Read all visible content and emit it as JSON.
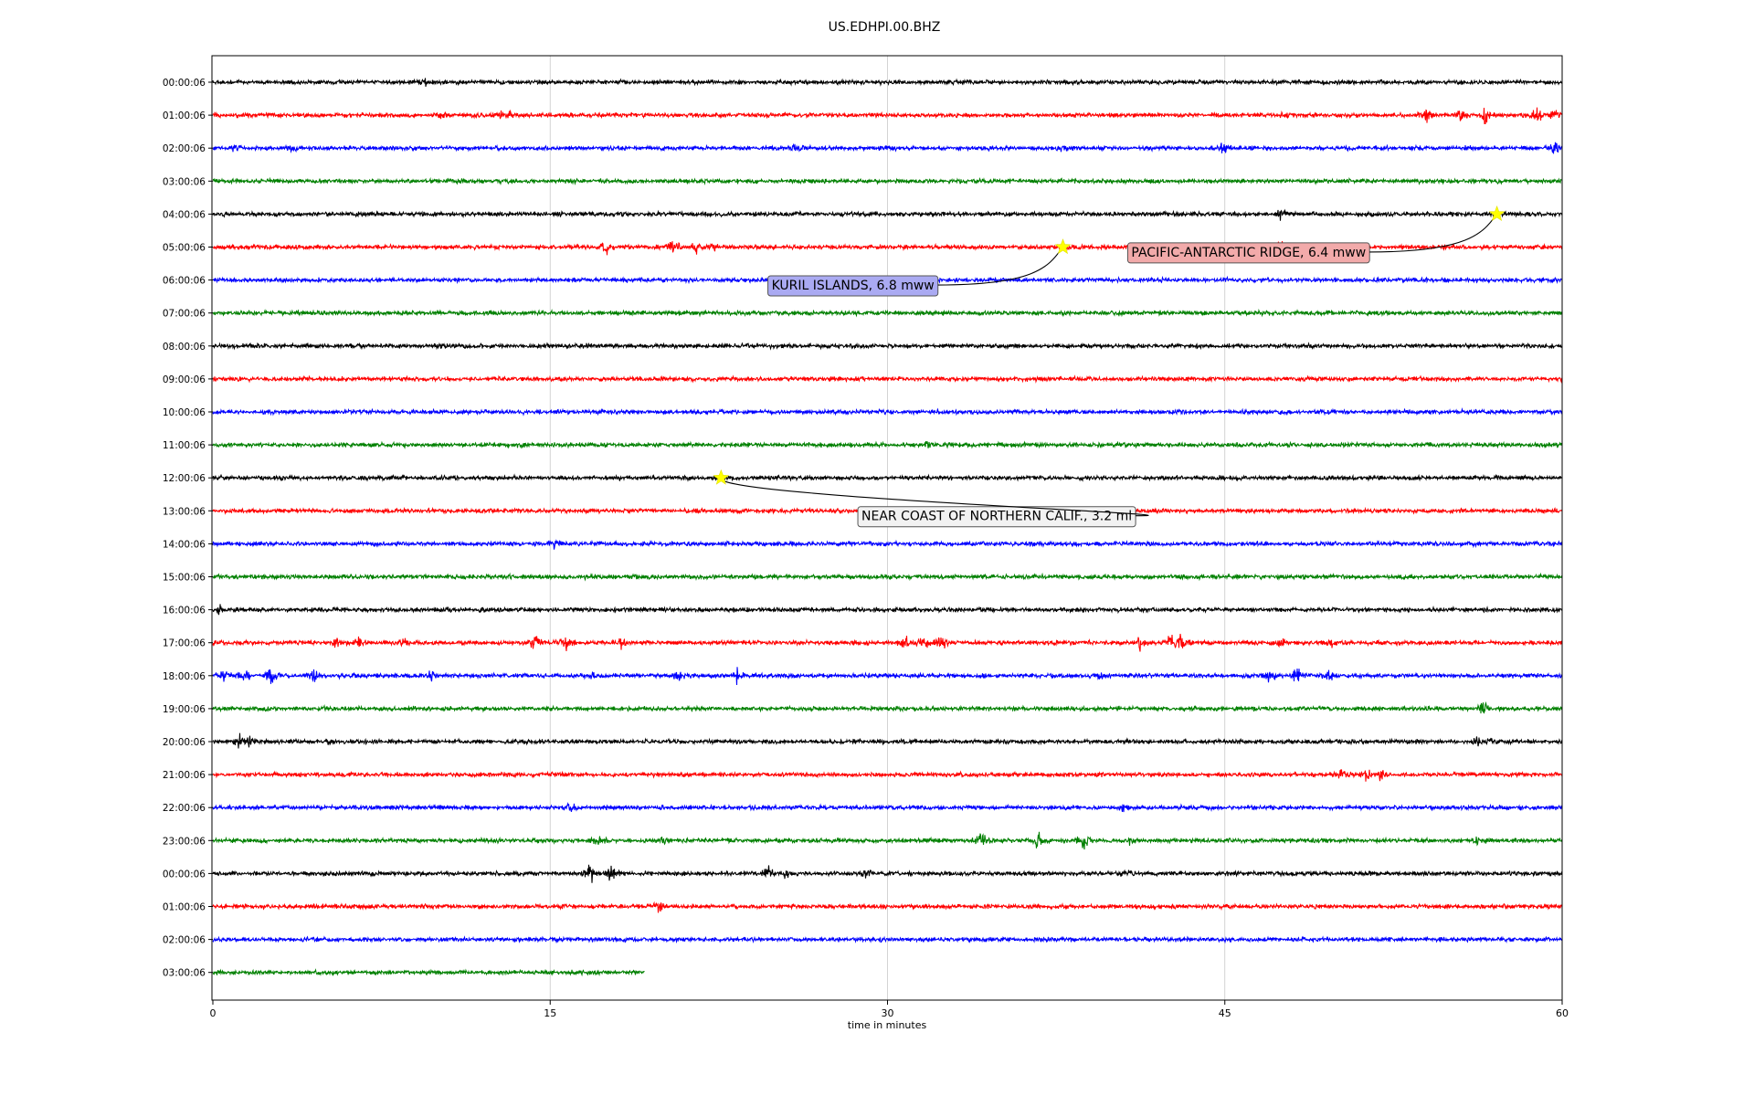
{
  "chart_data": {
    "type": "line",
    "title": "US.EDHPI.00.BHZ",
    "xlabel": "time in minutes",
    "ylabel": "",
    "xlim": [
      0,
      60
    ],
    "x_ticks": [
      0,
      15,
      30,
      45,
      60
    ],
    "grid": "vertical",
    "trace_colors": [
      "#000000",
      "#ff0000",
      "#0000ff",
      "#008000"
    ],
    "rows": [
      {
        "label": "00:00:06",
        "bursts": [
          [
            9.4,
            0.5
          ]
        ]
      },
      {
        "label": "01:00:06",
        "bursts": [
          [
            10.2,
            0.6
          ],
          [
            12.8,
            0.5
          ],
          [
            13.2,
            0.4
          ],
          [
            47.5,
            0.4
          ],
          [
            54,
            1.0
          ],
          [
            55.5,
            0.6
          ],
          [
            56.6,
            1.0
          ],
          [
            58.9,
            1.0
          ],
          [
            59.6,
            0.6
          ]
        ]
      },
      {
        "label": "02:00:06",
        "bursts": [
          [
            1,
            0.3
          ],
          [
            3.5,
            0.3
          ],
          [
            26,
            0.5
          ],
          [
            37.8,
            0.4
          ],
          [
            44.9,
            0.7
          ],
          [
            59.7,
            0.8
          ]
        ]
      },
      {
        "label": "03:00:06",
        "bursts": []
      },
      {
        "label": "04:00:06",
        "bursts": [
          [
            47.5,
            0.5
          ]
        ]
      },
      {
        "label": "05:00:06",
        "bursts": [
          [
            17.5,
            0.8
          ],
          [
            20.5,
            1.2
          ],
          [
            21.5,
            0.6
          ],
          [
            22.3,
            0.6
          ],
          [
            47.5,
            1.3
          ]
        ]
      },
      {
        "label": "06:00:06",
        "bursts": []
      },
      {
        "label": "07:00:06",
        "bursts": []
      },
      {
        "label": "08:00:06",
        "bursts": []
      },
      {
        "label": "09:00:06",
        "bursts": []
      },
      {
        "label": "10:00:06",
        "bursts": []
      },
      {
        "label": "11:00:06",
        "bursts": [
          [
            31.8,
            0.4
          ]
        ]
      },
      {
        "label": "12:00:06",
        "bursts": [
          [
            3.3,
            0.3
          ]
        ]
      },
      {
        "label": "13:00:06",
        "bursts": [
          [
            39,
            0.3
          ]
        ]
      },
      {
        "label": "14:00:06",
        "bursts": [
          [
            15.2,
            0.4
          ]
        ]
      },
      {
        "label": "15:00:06",
        "bursts": []
      },
      {
        "label": "16:00:06",
        "bursts": [
          [
            0.3,
            0.4
          ]
        ]
      },
      {
        "label": "17:00:06",
        "bursts": [
          [
            5.5,
            0.5
          ],
          [
            6.5,
            0.5
          ],
          [
            8.5,
            0.5
          ],
          [
            14.3,
            1.0
          ],
          [
            15.7,
            0.7
          ],
          [
            18.2,
            0.7
          ],
          [
            30.8,
            0.7
          ],
          [
            31.6,
            1.0
          ],
          [
            32.4,
            1.0
          ],
          [
            41.2,
            0.9
          ],
          [
            42.6,
            1.2
          ],
          [
            43.1,
            1.2
          ],
          [
            47.5,
            0.6
          ],
          [
            49.8,
            0.4
          ]
        ]
      },
      {
        "label": "18:00:06",
        "bursts": [
          [
            0.5,
            0.8
          ],
          [
            1.5,
            1.0
          ],
          [
            2.6,
            1.0
          ],
          [
            4.5,
            0.8
          ],
          [
            9.7,
            0.8
          ],
          [
            16.9,
            0.4
          ],
          [
            20.7,
            0.6
          ],
          [
            23.3,
            0.8
          ],
          [
            39.5,
            0.5
          ],
          [
            47,
            0.8
          ],
          [
            48.2,
            1.0
          ],
          [
            49.6,
            0.6
          ]
        ]
      },
      {
        "label": "19:00:06",
        "bursts": [
          [
            56.5,
            1.0
          ]
        ]
      },
      {
        "label": "20:00:06",
        "bursts": [
          [
            1.2,
            0.8
          ],
          [
            1.6,
            1.0
          ],
          [
            5.2,
            0.4
          ],
          [
            56.2,
            0.5
          ],
          [
            56.8,
            0.4
          ]
        ]
      },
      {
        "label": "21:00:06",
        "bursts": [
          [
            50.2,
            0.7
          ],
          [
            51.3,
            0.8
          ],
          [
            51.9,
            0.6
          ]
        ]
      },
      {
        "label": "22:00:06",
        "bursts": [
          [
            15.9,
            0.6
          ],
          [
            40.5,
            0.4
          ]
        ]
      },
      {
        "label": "23:00:06",
        "bursts": [
          [
            17.1,
            0.5
          ],
          [
            20,
            0.4
          ],
          [
            34.2,
            1.3
          ],
          [
            36.7,
            1.3
          ],
          [
            38.7,
            1.4
          ],
          [
            40.8,
            0.4
          ],
          [
            56.2,
            0.6
          ]
        ]
      },
      {
        "label": "00:00:06",
        "bursts": [
          [
            16.8,
            1.0
          ],
          [
            17.7,
            0.8
          ],
          [
            24.7,
            0.8
          ],
          [
            25.5,
            0.6
          ],
          [
            29,
            0.4
          ],
          [
            40.7,
            0.3
          ]
        ]
      },
      {
        "label": "01:00:06",
        "bursts": [
          [
            19.8,
            0.8
          ]
        ]
      },
      {
        "label": "02:00:06",
        "bursts": []
      },
      {
        "label": "03:00:06",
        "bursts": [],
        "end_minute": 19.2
      }
    ],
    "events": [
      {
        "label": "KURIL ISLANDS, 6.8 mww",
        "row": 5,
        "minute": 37.8,
        "box_color": "#aaaaf2",
        "text_row": 6.15,
        "text_minute": 24.6
      },
      {
        "label": "PACIFIC-ANTARCTIC RIDGE, 6.4 mww",
        "row": 4,
        "minute": 57.1,
        "box_color": "#f2aaaa",
        "text_row": 5.15,
        "text_minute": 40.6
      },
      {
        "label": "NEAR COAST OF NORTHERN CALIF., 3.2 ml",
        "row": 12,
        "minute": 22.6,
        "box_color": "#f2f2f2",
        "text_row": 13.15,
        "text_minute": 28.6
      }
    ]
  }
}
